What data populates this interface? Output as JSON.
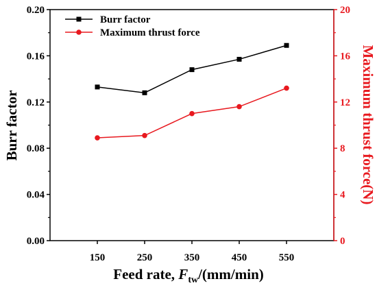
{
  "chart_data": {
    "type": "line",
    "x": [
      150,
      250,
      350,
      450,
      550
    ],
    "xlim": [
      50,
      650
    ],
    "x_ticks": [
      "150",
      "250",
      "350",
      "450",
      "550"
    ],
    "xlabel": {
      "main": "Feed rate, ",
      "var": "F",
      "sub": "tw",
      "unit": "/(mm/min)"
    },
    "ylabel_left": "Burr factor",
    "ylabel_right": "Maximum thrust force(N)",
    "ylim_left": [
      0,
      0.2
    ],
    "ylim_right": [
      0,
      20
    ],
    "y_ticks_left": [
      "0.00",
      "0.04",
      "0.08",
      "0.12",
      "0.16",
      "0.20"
    ],
    "y_ticks_right": [
      "0",
      "4",
      "8",
      "12",
      "16",
      "20"
    ],
    "series": [
      {
        "name": "Burr factor",
        "axis": "left",
        "color": "#000000",
        "marker": "square",
        "values": [
          0.133,
          0.128,
          0.148,
          0.157,
          0.169
        ]
      },
      {
        "name": "Maximum thrust force",
        "axis": "right",
        "color": "#e8191f",
        "marker": "circle",
        "values": [
          8.9,
          9.1,
          11.0,
          11.6,
          13.2
        ]
      }
    ],
    "legend": "top-left",
    "right_axis_color": "#e8191f",
    "grid": false
  }
}
